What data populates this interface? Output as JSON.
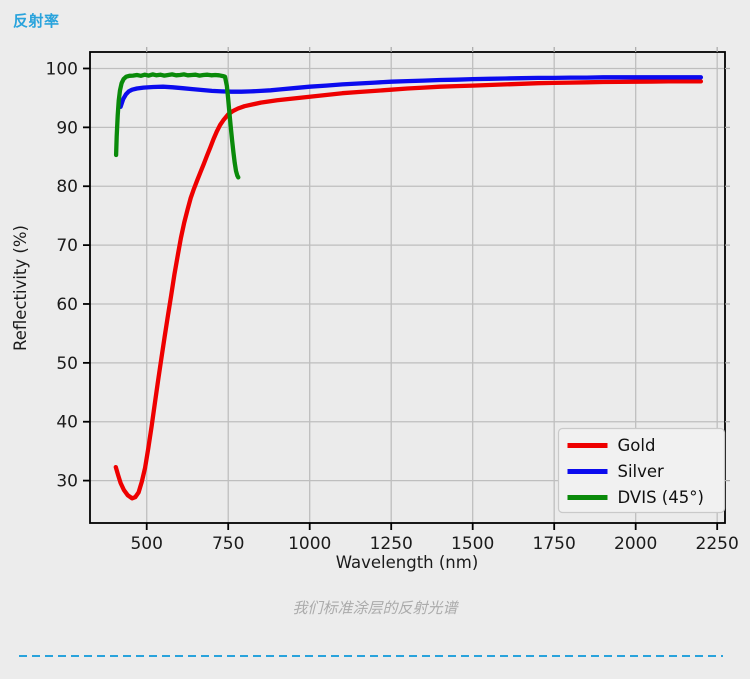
{
  "page": {
    "title": "反射率",
    "caption": "我们标准涂层的反射光谱",
    "accent_color": "#29a3dc",
    "background": "#ececec"
  },
  "chart_data": {
    "type": "line",
    "xlabel": "Wavelength (nm)",
    "ylabel": "Reflectivity (%)",
    "xlim": [
      326,
      2274
    ],
    "ylim": [
      22.8,
      102.8
    ],
    "xticks": [
      500,
      750,
      1000,
      1250,
      1500,
      1750,
      2000,
      2250
    ],
    "yticks": [
      30,
      40,
      50,
      60,
      70,
      80,
      90,
      100
    ],
    "grid": true,
    "plot_bg": "#ebebeb",
    "grid_color": "#bebebe",
    "spine_color": "#000000",
    "tick_label_color": "#1b1b1b",
    "legend_position": "lower right",
    "legend_labels": [
      "Gold",
      "Silver",
      "DVIS (45°)"
    ],
    "series": [
      {
        "name": "Gold",
        "color": "#ee0000",
        "points": [
          [
            405,
            32.3
          ],
          [
            412,
            31.0
          ],
          [
            420,
            29.6
          ],
          [
            430,
            28.4
          ],
          [
            442,
            27.5
          ],
          [
            455,
            27.0
          ],
          [
            465,
            27.2
          ],
          [
            475,
            28.0
          ],
          [
            485,
            29.8
          ],
          [
            495,
            32.2
          ],
          [
            505,
            35.5
          ],
          [
            515,
            39.2
          ],
          [
            525,
            43.2
          ],
          [
            535,
            47.0
          ],
          [
            545,
            50.8
          ],
          [
            555,
            54.4
          ],
          [
            565,
            58.0
          ],
          [
            575,
            61.5
          ],
          [
            585,
            65.0
          ],
          [
            595,
            68.2
          ],
          [
            605,
            71.2
          ],
          [
            615,
            73.8
          ],
          [
            625,
            76.0
          ],
          [
            635,
            78.0
          ],
          [
            645,
            79.6
          ],
          [
            655,
            81.0
          ],
          [
            665,
            82.4
          ],
          [
            675,
            83.8
          ],
          [
            685,
            85.2
          ],
          [
            695,
            86.6
          ],
          [
            705,
            88.0
          ],
          [
            715,
            89.3
          ],
          [
            725,
            90.4
          ],
          [
            735,
            91.2
          ],
          [
            750,
            92.2
          ],
          [
            765,
            92.8
          ],
          [
            780,
            93.2
          ],
          [
            800,
            93.6
          ],
          [
            825,
            93.9
          ],
          [
            850,
            94.2
          ],
          [
            900,
            94.6
          ],
          [
            950,
            94.9
          ],
          [
            1000,
            95.2
          ],
          [
            1050,
            95.5
          ],
          [
            1100,
            95.8
          ],
          [
            1150,
            96.0
          ],
          [
            1200,
            96.2
          ],
          [
            1250,
            96.4
          ],
          [
            1300,
            96.6
          ],
          [
            1350,
            96.75
          ],
          [
            1400,
            96.9
          ],
          [
            1450,
            97.0
          ],
          [
            1500,
            97.1
          ],
          [
            1550,
            97.2
          ],
          [
            1600,
            97.3
          ],
          [
            1650,
            97.4
          ],
          [
            1700,
            97.5
          ],
          [
            1750,
            97.55
          ],
          [
            1800,
            97.6
          ],
          [
            1850,
            97.65
          ],
          [
            1900,
            97.7
          ],
          [
            1950,
            97.72
          ],
          [
            2000,
            97.75
          ],
          [
            2050,
            97.77
          ],
          [
            2100,
            97.8
          ],
          [
            2150,
            97.8
          ],
          [
            2200,
            97.8
          ]
        ]
      },
      {
        "name": "Silver",
        "color": "#0b0bee",
        "points": [
          [
            420,
            93.5
          ],
          [
            428,
            94.8
          ],
          [
            436,
            95.6
          ],
          [
            445,
            96.1
          ],
          [
            455,
            96.4
          ],
          [
            470,
            96.6
          ],
          [
            490,
            96.75
          ],
          [
            520,
            96.85
          ],
          [
            550,
            96.9
          ],
          [
            580,
            96.8
          ],
          [
            610,
            96.65
          ],
          [
            640,
            96.5
          ],
          [
            670,
            96.35
          ],
          [
            700,
            96.2
          ],
          [
            730,
            96.1
          ],
          [
            760,
            96.05
          ],
          [
            790,
            96.05
          ],
          [
            820,
            96.1
          ],
          [
            850,
            96.2
          ],
          [
            880,
            96.3
          ],
          [
            910,
            96.45
          ],
          [
            950,
            96.65
          ],
          [
            1000,
            96.9
          ],
          [
            1050,
            97.1
          ],
          [
            1100,
            97.3
          ],
          [
            1150,
            97.45
          ],
          [
            1200,
            97.6
          ],
          [
            1250,
            97.75
          ],
          [
            1300,
            97.85
          ],
          [
            1350,
            97.95
          ],
          [
            1400,
            98.05
          ],
          [
            1450,
            98.1
          ],
          [
            1500,
            98.2
          ],
          [
            1550,
            98.25
          ],
          [
            1600,
            98.3
          ],
          [
            1650,
            98.35
          ],
          [
            1700,
            98.4
          ],
          [
            1750,
            98.4
          ],
          [
            1800,
            98.45
          ],
          [
            1850,
            98.45
          ],
          [
            1900,
            98.5
          ],
          [
            1950,
            98.5
          ],
          [
            2000,
            98.5
          ],
          [
            2050,
            98.5
          ],
          [
            2100,
            98.5
          ],
          [
            2150,
            98.5
          ],
          [
            2200,
            98.5
          ]
        ]
      },
      {
        "name": "DVIS (45°)",
        "color": "#0a8a0a",
        "points": [
          [
            406,
            85.3
          ],
          [
            408,
            88.5
          ],
          [
            411,
            92.0
          ],
          [
            414,
            94.5
          ],
          [
            418,
            96.3
          ],
          [
            423,
            97.5
          ],
          [
            429,
            98.2
          ],
          [
            437,
            98.6
          ],
          [
            447,
            98.75
          ],
          [
            458,
            98.8
          ],
          [
            470,
            98.9
          ],
          [
            482,
            98.75
          ],
          [
            494,
            98.95
          ],
          [
            506,
            98.8
          ],
          [
            518,
            99.0
          ],
          [
            530,
            98.85
          ],
          [
            542,
            98.95
          ],
          [
            554,
            98.8
          ],
          [
            566,
            98.9
          ],
          [
            578,
            99.0
          ],
          [
            590,
            98.85
          ],
          [
            602,
            98.9
          ],
          [
            614,
            99.0
          ],
          [
            626,
            98.85
          ],
          [
            638,
            98.9
          ],
          [
            650,
            98.95
          ],
          [
            662,
            98.8
          ],
          [
            674,
            98.9
          ],
          [
            686,
            98.95
          ],
          [
            698,
            98.85
          ],
          [
            710,
            98.9
          ],
          [
            722,
            98.85
          ],
          [
            734,
            98.7
          ],
          [
            740,
            98.6
          ],
          [
            746,
            97.0
          ],
          [
            750,
            94.8
          ],
          [
            754,
            92.3
          ],
          [
            758,
            90.0
          ],
          [
            762,
            87.8
          ],
          [
            766,
            85.8
          ],
          [
            770,
            84.0
          ],
          [
            774,
            82.6
          ],
          [
            778,
            81.8
          ],
          [
            781,
            81.5
          ]
        ]
      }
    ]
  }
}
